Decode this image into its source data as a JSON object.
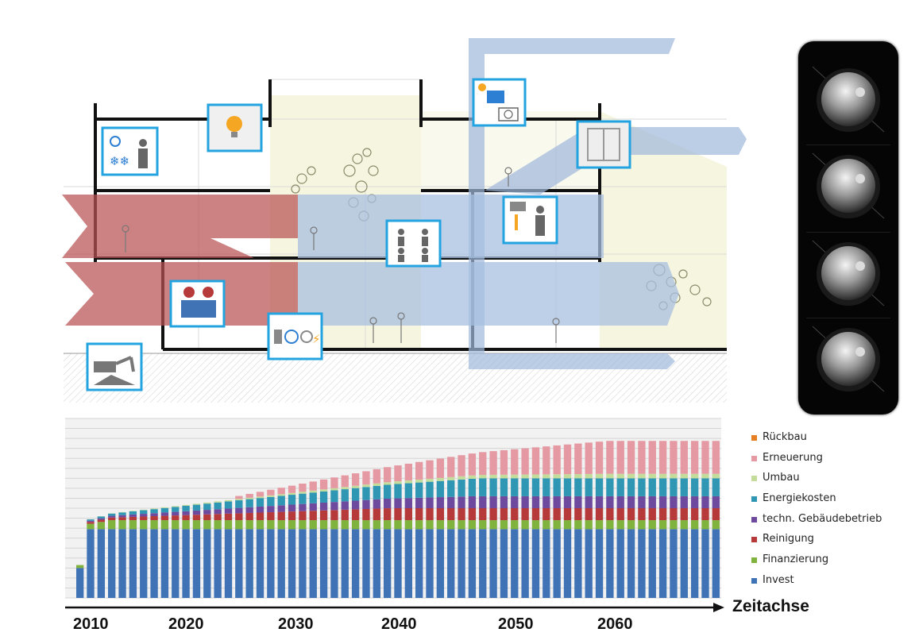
{
  "legend": {
    "items": [
      {
        "label": "Rückbau",
        "color": "#e67e22"
      },
      {
        "label": "Erneuerung",
        "color": "#e59aa3"
      },
      {
        "label": "Umbau",
        "color": "#c3dc9a"
      },
      {
        "label": "Energiekosten",
        "color": "#2f97b3"
      },
      {
        "label": "techn. Gebäudebetrieb",
        "color": "#6e4a9e"
      },
      {
        "label": "Reinigung",
        "color": "#b73a3a"
      },
      {
        "label": "Finanzierung",
        "color": "#7fb33d"
      },
      {
        "label": "Invest",
        "color": "#3f73b5"
      }
    ]
  },
  "axis": {
    "title": "Zeitachse",
    "years": [
      "2010",
      "2020",
      "2030",
      "2040",
      "2050",
      "2060"
    ]
  },
  "chart_data": {
    "type": "bar",
    "stacked": true,
    "x_start_year": 2008,
    "x_end_year": 2068,
    "series_order": [
      "Invest",
      "Finanzierung",
      "Reinigung",
      "techn. Gebäudebetrieb",
      "Energiekosten",
      "Umbau",
      "Erneuerung",
      "Rückbau"
    ],
    "yearly_increment": {
      "Invest": 0,
      "Finanzierung": 0,
      "Reinigung": 0.12,
      "techn. Gebäudebetrieb": 0.1,
      "Energiekosten": 0.15,
      "Umbau": 0.03,
      "Erneuerung": 0.9,
      "Rückbau": 0
    },
    "first_year_values": {
      "Invest": 10,
      "Finanzierung": 1,
      "Reinigung": 0,
      "techn. Gebäudebetrieb": 0,
      "Energiekosten": 0,
      "Umbau": 0,
      "Erneuerung": 0,
      "Rückbau": 0
    },
    "steady_values": {
      "Invest": 23,
      "Finanzierung": 3
    },
    "erneuerung_start_year": 2023,
    "grid": true,
    "legend_position": "right"
  },
  "scene": {
    "icons": [
      "climate-person-icon",
      "lightbulb-icon",
      "solar-panel-icon",
      "window-icon",
      "temperature-person-icon",
      "restroom-icon",
      "workers-icon",
      "energy-devices-icon",
      "excavator-icon"
    ],
    "knob_count": 4
  }
}
